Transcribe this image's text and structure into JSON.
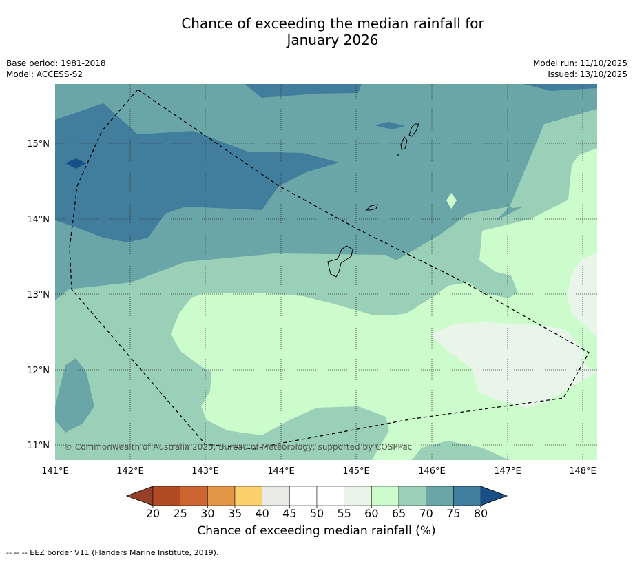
{
  "title_line1": "Chance of exceeding the median rainfall for",
  "title_line2": "January 2026",
  "meta": {
    "base_period": "Base period: 1981-2018",
    "model": "Model: ACCESS-S2",
    "model_run": "Model run: 11/10/2025",
    "issued": "Issued: 13/10/2025"
  },
  "axes": {
    "x_ticks": [
      "141°E",
      "142°E",
      "143°E",
      "144°E",
      "145°E",
      "146°E",
      "147°E",
      "148°E"
    ],
    "y_ticks": [
      "15°N",
      "14°N",
      "13°N",
      "12°N",
      "11°N"
    ]
  },
  "credit": "© Commonwealth of Australia 2025, Bureau of Meteorology, supported by COSPPac",
  "colorbar": {
    "title": "Chance of exceeding median rainfall (%)",
    "ticks": [
      "20",
      "25",
      "30",
      "35",
      "40",
      "45",
      "50",
      "55",
      "60",
      "65",
      "70",
      "75",
      "80"
    ],
    "colors": [
      "#b34a26",
      "#cd6531",
      "#e29748",
      "#fbcf6a",
      "#e9e9e6",
      "#ffffff",
      "#ffffff",
      "#e9f5e9",
      "#ccfccc",
      "#9bd0b8",
      "#6aa6a8",
      "#417e9d"
    ],
    "under_color": "#96402a",
    "over_color": "#174f86"
  },
  "legend_note": "-- -- -- EEZ border V11 (Flanders Marine Institute, 2019).",
  "colors": {
    "band_55_60": "#e9f5e9",
    "band_60_65": "#ccfccc",
    "band_65_70": "#9bd0b8",
    "band_70_75": "#6aa6a8",
    "band_75_80": "#417e9d",
    "band_80_plus": "#174f86"
  }
}
